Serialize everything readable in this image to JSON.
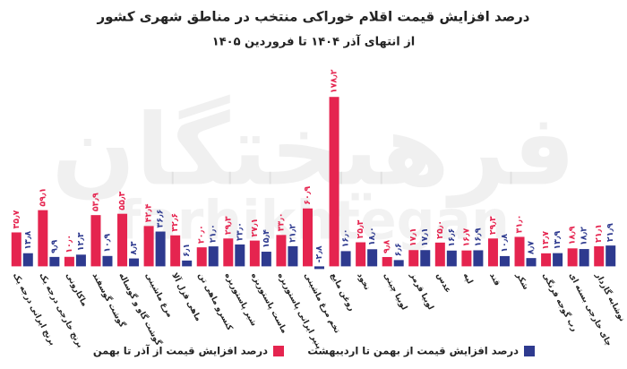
{
  "chart_data": {
    "type": "bar",
    "title": "درصد افزایش قیمت اقلام خوراکی منتخب در مناطق شهری کشور",
    "subtitle": "از انتهای آذر ۱۴۰۴ تا فروردین ۱۴۰۵",
    "watermark": [
      "فرهیختگان",
      "farhikhtegan"
    ],
    "categories": [
      "برنج ایرانی درجه یک",
      "برنج خارجی درجه یک",
      "ماکارونی",
      "گوشت گوسفند",
      "گوشت گاو و گوساله",
      "مرغ ماشینی",
      "ماهی قزل آلا",
      "کنسرو ماهی تن",
      "شیر پاستوریزه",
      "ماست پاستوریزه",
      "پنیر ایرانی پاستوریزه",
      "تخم مرغ ماشینی",
      "روغن مایع",
      "نخود",
      "لوبیا چیتی",
      "لوبیا قرمز",
      "عدس",
      "لپه",
      "قند",
      "شکر",
      "رب گوجه فرنگی",
      "چای خارجی بسته ای",
      "نوشابه گازدار"
    ],
    "series": [
      {
        "name": "درصد افزایش قیمت از آذر تا بهمن",
        "color": "#e5244f",
        "values": [
          35.7,
          59.1,
          10.0,
          53.9,
          55.3,
          42.4,
          32.6,
          20.0,
          29.3,
          27.1,
          33.0,
          60.9,
          178.2,
          25.3,
          9.8,
          17.1,
          25.0,
          16.7,
          29.3,
          31.0,
          13.7,
          18.9,
          21.1
        ],
        "value_labels": [
          "۳۵٫۷",
          "۵۹٫۱",
          "۱۰٫۰",
          "۵۳٫۹",
          "۵۵٫۳",
          "۴۲٫۴",
          "۳۲٫۶",
          "۲۰٫۰",
          "۲۹٫۳",
          "۲۷٫۱",
          "۳۳٫۰",
          "۶۰٫۹",
          "۱۷۸٫۲",
          "۲۵٫۳",
          "۹٫۸",
          "۱۷٫۱",
          "۲۵٫۰",
          "۱۶٫۷",
          "۲۹٫۳",
          "۳۱٫۰",
          "۱۳٫۷",
          "۱۸٫۹",
          "۲۱٫۱"
        ]
      },
      {
        "name": "درصد افزایش قیمت از بهمن تا اردیبهشت",
        "color": "#2e3a8f",
        "values": [
          13.8,
          9.9,
          12.3,
          10.9,
          8.3,
          36.6,
          6.1,
          21.0,
          23.0,
          15.4,
          21.2,
          -2.8,
          16.0,
          18.0,
          6.6,
          17.1,
          16.6,
          16.9,
          10.8,
          8.7,
          13.9,
          18.2,
          21.9
        ],
        "value_labels": [
          "۱۳٫۸",
          "۹٫۹",
          "۱۲٫۳",
          "۱۰٫۹",
          "۸٫۳",
          "۳۶٫۶",
          "۶٫۱",
          "۲۱٫۰",
          "۲۳٫۰",
          "۱۵٫۴",
          "۲۱٫۲",
          "-۲٫۸",
          "۱۶٫۰",
          "۱۸٫۰",
          "۶٫۶",
          "۱۷٫۱",
          "۱۶٫۶",
          "۱۶٫۹",
          "۱۰٫۸",
          "۸٫۷",
          "۱۳٫۹",
          "۱۸٫۲",
          "۲۱٫۹"
        ]
      }
    ],
    "ylim": [
      -10,
      185
    ]
  }
}
